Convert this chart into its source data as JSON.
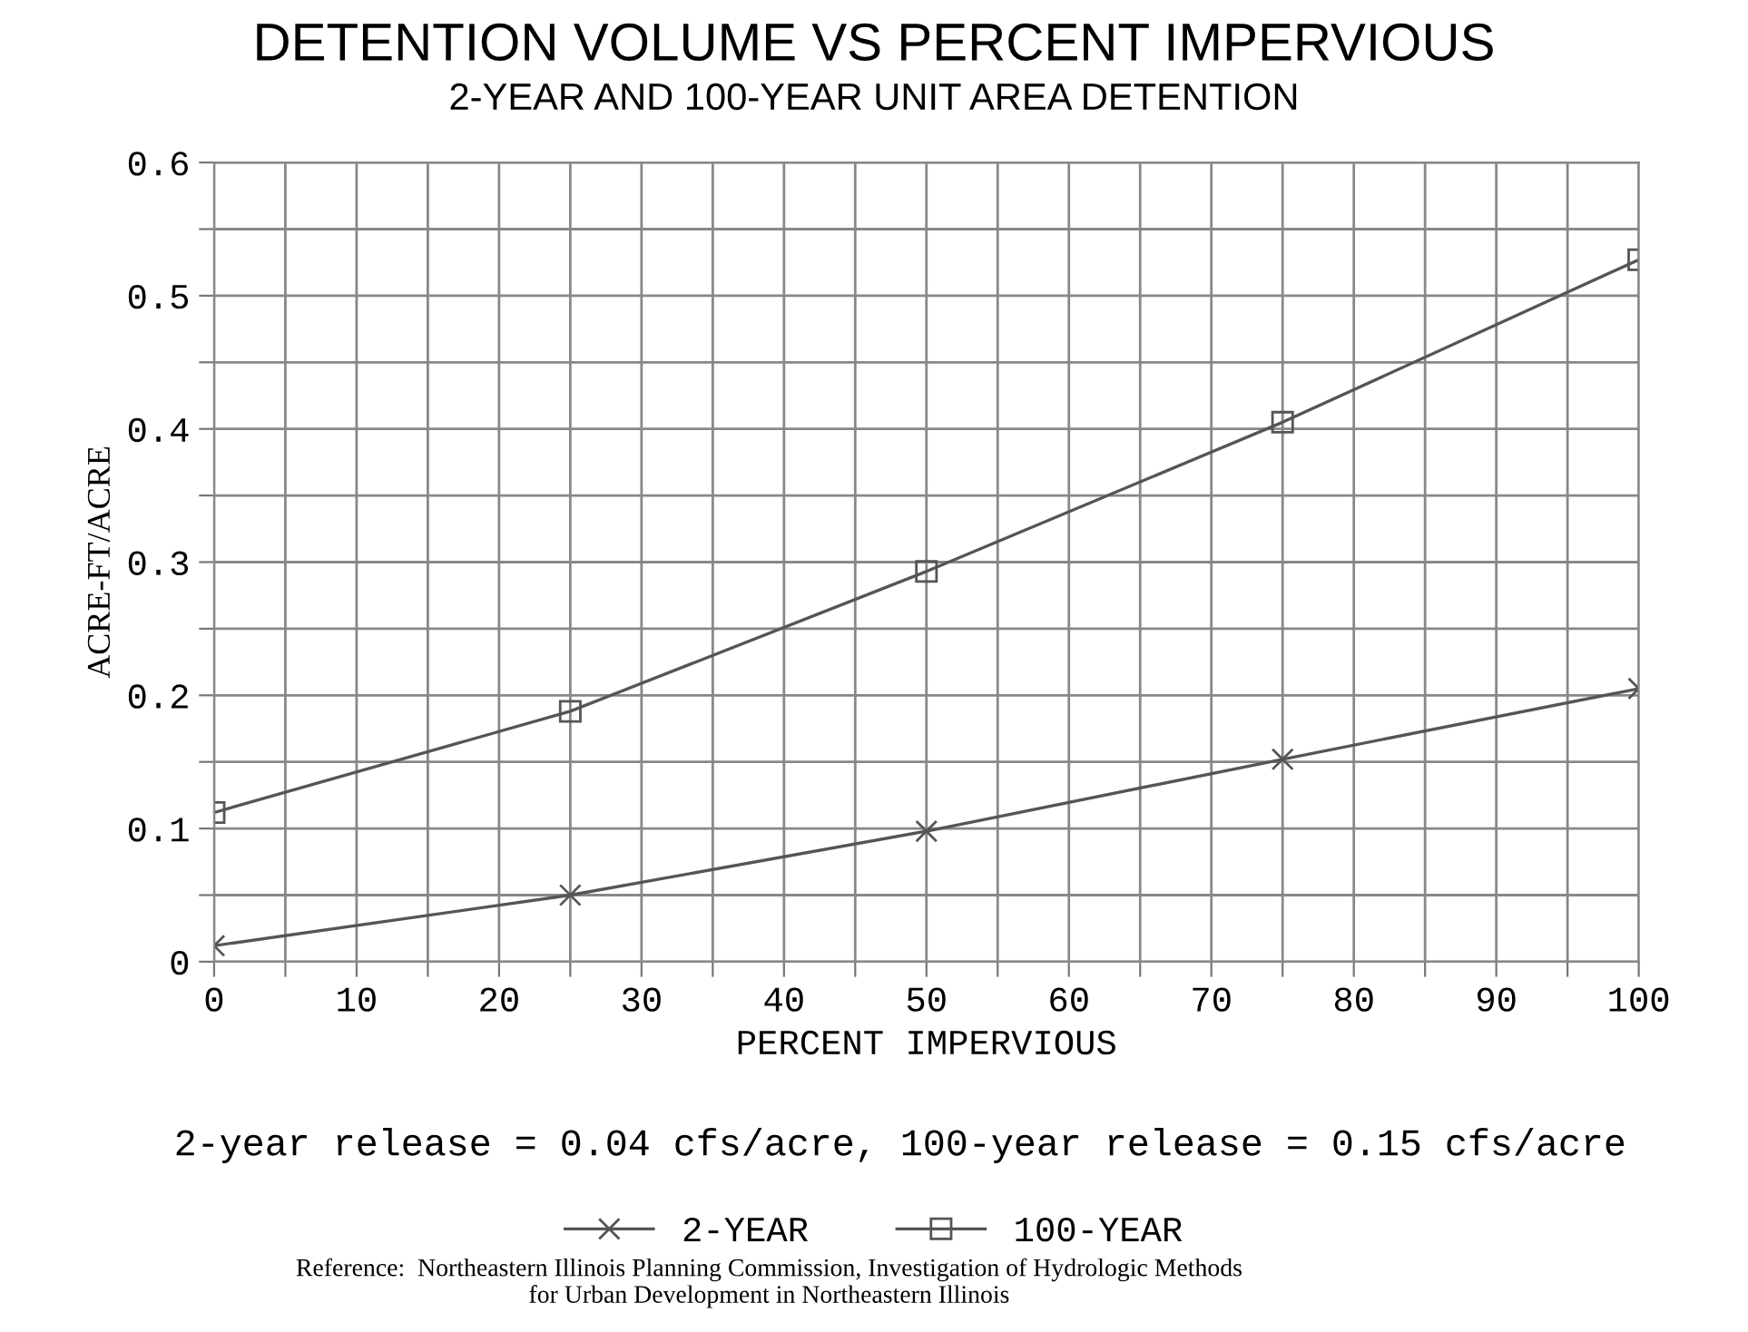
{
  "chart_data": {
    "type": "line",
    "title": "DETENTION VOLUME VS PERCENT IMPERVIOUS",
    "subtitle": "2-YEAR AND 100-YEAR UNIT AREA DETENTION",
    "xlabel": "PERCENT IMPERVIOUS",
    "ylabel": "ACRE-FT/ACRE",
    "x": [
      0,
      25,
      50,
      75,
      100
    ],
    "series": [
      {
        "name": "2-YEAR",
        "color": "#555555",
        "marker": "cross",
        "values": [
          0.012,
          0.05,
          0.098,
          0.152,
          0.205
        ]
      },
      {
        "name": "100-YEAR",
        "color": "#555555",
        "marker": "square",
        "values": [
          0.112,
          0.188,
          0.293,
          0.405,
          0.527
        ]
      }
    ],
    "xlim": [
      0,
      100
    ],
    "ylim": [
      0,
      0.6
    ],
    "xticks": [
      0,
      {
        "value": 5,
        "label": null
      },
      10,
      {
        "value": 15,
        "label": null
      },
      20,
      {
        "value": 25,
        "label": null
      },
      30,
      {
        "value": 35,
        "label": null
      },
      40,
      {
        "value": 45,
        "label": null
      },
      50,
      {
        "value": 55,
        "label": null
      },
      60,
      {
        "value": 65,
        "label": null
      },
      70,
      {
        "value": 75,
        "label": null
      },
      80,
      {
        "value": 85,
        "label": null
      },
      90,
      {
        "value": 95,
        "label": null
      },
      100
    ],
    "yticks": [
      0,
      {
        "value": 0.05,
        "label": null
      },
      {
        "value": 0.1,
        "label": "0.1"
      },
      {
        "value": 0.15,
        "label": null
      },
      {
        "value": 0.2,
        "label": "0.2"
      },
      {
        "value": 0.25,
        "label": null
      },
      {
        "value": 0.3,
        "label": "0.3"
      },
      {
        "value": 0.35,
        "label": null
      },
      {
        "value": 0.4,
        "label": "0.4"
      },
      {
        "value": 0.45,
        "label": null
      },
      {
        "value": 0.5,
        "label": "0.5"
      },
      {
        "value": 0.55,
        "label": null
      },
      {
        "value": 0.6,
        "label": "0.6"
      }
    ],
    "grid": true,
    "legend": "bottom",
    "line_style": "solid",
    "annotations": [
      "2-year release = 0.04 cfs/acre, 100-year release = 0.15 cfs/acre",
      "Reference:  Northeastern Illinois Planning Commission, Investigation of Hydrologic Methods\nfor Urban Development in Northeastern Illinois"
    ]
  }
}
